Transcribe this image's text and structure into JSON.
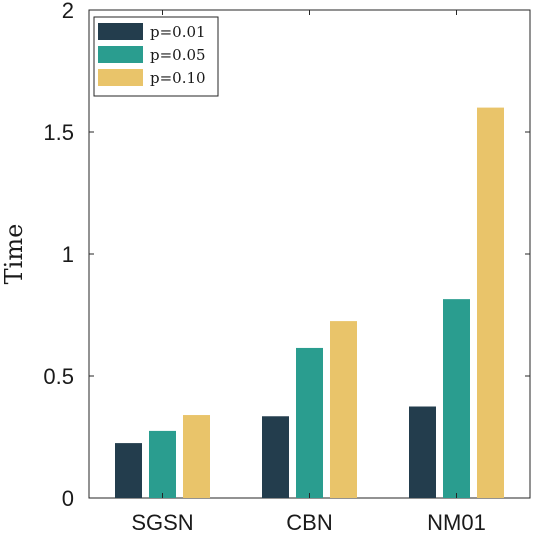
{
  "chart_data": {
    "type": "bar",
    "categories": [
      "SGSN",
      "CBN",
      "NM01"
    ],
    "series": [
      {
        "name": "p=0.01",
        "values": [
          0.225,
          0.335,
          0.375
        ],
        "color": "#233d4d"
      },
      {
        "name": "p=0.05",
        "values": [
          0.275,
          0.615,
          0.815
        ],
        "color": "#2a9d8f"
      },
      {
        "name": "p=0.10",
        "values": [
          0.34,
          0.725,
          1.6
        ],
        "color": "#e9c46a"
      }
    ],
    "ylabel": "Time",
    "ylim": [
      0,
      2
    ],
    "yticks": [
      0,
      0.5,
      1,
      1.5,
      2
    ],
    "ytick_labels": [
      "0",
      "0.5",
      "1",
      "1.5",
      "2"
    ],
    "legend_position": "top-left",
    "grid": false
  }
}
